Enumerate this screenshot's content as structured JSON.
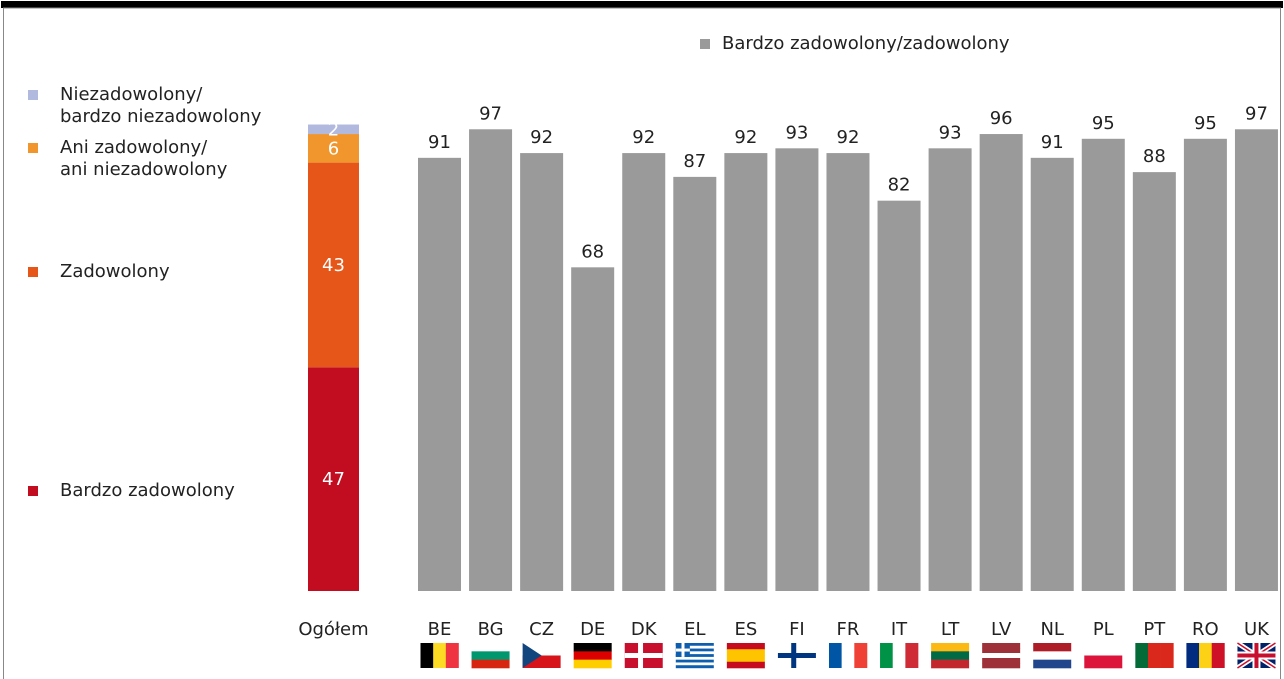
{
  "chart_data": [
    {
      "type": "stacked_bar",
      "categories": [
        "Ogółem"
      ],
      "series": [
        {
          "name": "Bardzo zadowolony",
          "color": "#c20c1f",
          "values": [
            47
          ]
        },
        {
          "name": "Zadowolony",
          "color": "#e65619",
          "values": [
            43
          ]
        },
        {
          "name": "Ani zadowolony/\nani niezadowolony",
          "color": "#f0962c",
          "values": [
            6
          ]
        },
        {
          "name": "Niezadowolony/\nbardzo niezadowolony",
          "color": "#b2b9de",
          "values": [
            2
          ]
        }
      ],
      "ylim": [
        0,
        100
      ]
    },
    {
      "type": "bar",
      "categories": [
        "BE",
        "BG",
        "CZ",
        "DE",
        "DK",
        "EL",
        "ES",
        "FI",
        "FR",
        "IT",
        "LT",
        "LV",
        "NL",
        "PL",
        "PT",
        "RO",
        "UK"
      ],
      "series": [
        {
          "name": "Bardzo zadowolony/zadowolony",
          "color": "#9a9a9a",
          "values": [
            91,
            97,
            92,
            68,
            92,
            87,
            92,
            93,
            92,
            82,
            93,
            96,
            91,
            95,
            88,
            95,
            97
          ]
        }
      ],
      "ylim": [
        0,
        100
      ],
      "legend": "top"
    }
  ]
}
